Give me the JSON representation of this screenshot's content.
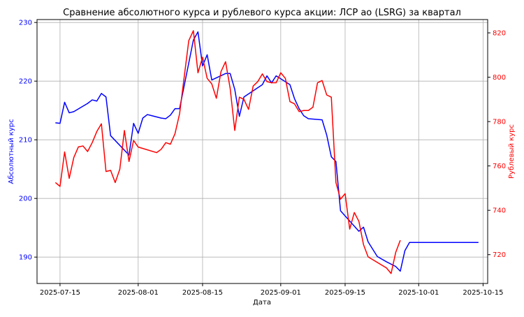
{
  "chart_data": {
    "type": "line",
    "title": "Сравнение абсолютного курса и рублевого курса акции: ЛСР ао (LSRG) за квартал",
    "xlabel": "Дата",
    "ylabel_left": "Абсолютный курс",
    "ylabel_right": "Рублевый курс",
    "grid": true,
    "colors": {
      "left": "#0000ff",
      "right": "#ff0000",
      "grid": "#b0b0b0",
      "axis": "#000000"
    },
    "x_ticks": [
      "2025-07-15",
      "2025-08-01",
      "2025-08-15",
      "2025-09-01",
      "2025-09-15",
      "2025-10-01",
      "2025-10-15"
    ],
    "x_range": [
      "2025-07-10",
      "2025-10-16"
    ],
    "yleft_ticks": [
      190,
      200,
      210,
      220,
      230
    ],
    "yleft_range": [
      185.5,
      230.5
    ],
    "yright_ticks": [
      720,
      740,
      760,
      780,
      800,
      820
    ],
    "yright_range": [
      707,
      826
    ],
    "series": [
      {
        "axis": "left",
        "color": "#0000ff",
        "points": [
          [
            "2025-07-14",
            212.9
          ],
          [
            "2025-07-15",
            212.8
          ],
          [
            "2025-07-16",
            216.4
          ],
          [
            "2025-07-17",
            214.6
          ],
          [
            "2025-07-18",
            214.8
          ],
          [
            "2025-07-21",
            216.2
          ],
          [
            "2025-07-22",
            216.8
          ],
          [
            "2025-07-23",
            216.6
          ],
          [
            "2025-07-24",
            217.9
          ],
          [
            "2025-07-25",
            217.3
          ],
          [
            "2025-07-26",
            210.7
          ],
          [
            "2025-07-30",
            207.4
          ],
          [
            "2025-07-31",
            212.8
          ],
          [
            "2025-08-01",
            211.1
          ],
          [
            "2025-08-02",
            213.7
          ],
          [
            "2025-08-03",
            214.3
          ],
          [
            "2025-08-04",
            214.1
          ],
          [
            "2025-08-06",
            213.7
          ],
          [
            "2025-08-07",
            213.6
          ],
          [
            "2025-08-08",
            214.2
          ],
          [
            "2025-08-09",
            215.3
          ],
          [
            "2025-08-10",
            215.3
          ],
          [
            "2025-08-13",
            227.0
          ],
          [
            "2025-08-14",
            228.4
          ],
          [
            "2025-08-15",
            222.6
          ],
          [
            "2025-08-16",
            224.5
          ],
          [
            "2025-08-17",
            220.2
          ],
          [
            "2025-08-20",
            221.3
          ],
          [
            "2025-08-21",
            221.3
          ],
          [
            "2025-08-22",
            218.6
          ],
          [
            "2025-08-23",
            214.0
          ],
          [
            "2025-08-24",
            217.3
          ],
          [
            "2025-08-28",
            219.4
          ],
          [
            "2025-08-29",
            220.9
          ],
          [
            "2025-08-30",
            219.7
          ],
          [
            "2025-08-31",
            220.9
          ],
          [
            "2025-09-02",
            219.9
          ],
          [
            "2025-09-03",
            219.4
          ],
          [
            "2025-09-04",
            217.0
          ],
          [
            "2025-09-05",
            215.3
          ],
          [
            "2025-09-06",
            214.1
          ],
          [
            "2025-09-07",
            213.6
          ],
          [
            "2025-09-10",
            213.4
          ],
          [
            "2025-09-11",
            210.8
          ],
          [
            "2025-09-12",
            207.1
          ],
          [
            "2025-09-13",
            206.3
          ],
          [
            "2025-09-14",
            197.9
          ],
          [
            "2025-09-18",
            194.4
          ],
          [
            "2025-09-19",
            195.1
          ],
          [
            "2025-09-20",
            192.6
          ],
          [
            "2025-09-22",
            190.1
          ],
          [
            "2025-09-24",
            189.2
          ],
          [
            "2025-09-26",
            188.4
          ],
          [
            "2025-09-27",
            187.6
          ],
          [
            "2025-09-28",
            191.1
          ],
          [
            "2025-09-29",
            192.5
          ],
          [
            "2025-10-14",
            192.5
          ]
        ]
      },
      {
        "axis": "right",
        "color": "#ff0000",
        "points": [
          [
            "2025-07-14",
            752.5
          ],
          [
            "2025-07-15",
            750.8
          ],
          [
            "2025-07-16",
            766.3
          ],
          [
            "2025-07-17",
            754.4
          ],
          [
            "2025-07-18",
            763.8
          ],
          [
            "2025-07-19",
            768.6
          ],
          [
            "2025-07-20",
            769.0
          ],
          [
            "2025-07-21",
            766.5
          ],
          [
            "2025-07-22",
            770.5
          ],
          [
            "2025-07-23",
            775.5
          ],
          [
            "2025-07-24",
            779.0
          ],
          [
            "2025-07-25",
            757.5
          ],
          [
            "2025-07-26",
            758.0
          ],
          [
            "2025-07-27",
            752.5
          ],
          [
            "2025-07-28",
            758.5
          ],
          [
            "2025-07-29",
            776.0
          ],
          [
            "2025-07-30",
            762.0
          ],
          [
            "2025-07-31",
            771.5
          ],
          [
            "2025-08-01",
            768.5
          ],
          [
            "2025-08-05",
            766.0
          ],
          [
            "2025-08-06",
            767.5
          ],
          [
            "2025-08-07",
            770.5
          ],
          [
            "2025-08-08",
            769.8
          ],
          [
            "2025-08-09",
            774.5
          ],
          [
            "2025-08-10",
            783.5
          ],
          [
            "2025-08-12",
            816.5
          ],
          [
            "2025-08-13",
            821.0
          ],
          [
            "2025-08-14",
            802.0
          ],
          [
            "2025-08-15",
            809.0
          ],
          [
            "2025-08-16",
            799.5
          ],
          [
            "2025-08-17",
            797.0
          ],
          [
            "2025-08-18",
            790.5
          ],
          [
            "2025-08-19",
            802.5
          ],
          [
            "2025-08-20",
            807.0
          ],
          [
            "2025-08-21",
            795.0
          ],
          [
            "2025-08-22",
            776.0
          ],
          [
            "2025-08-23",
            791.0
          ],
          [
            "2025-08-24",
            790.0
          ],
          [
            "2025-08-25",
            785.5
          ],
          [
            "2025-08-26",
            796.0
          ],
          [
            "2025-08-27",
            798.0
          ],
          [
            "2025-08-28",
            801.5
          ],
          [
            "2025-08-29",
            798.0
          ],
          [
            "2025-08-30",
            797.5
          ],
          [
            "2025-08-31",
            797.5
          ],
          [
            "2025-09-01",
            802.0
          ],
          [
            "2025-09-02",
            799.5
          ],
          [
            "2025-09-03",
            789.0
          ],
          [
            "2025-09-04",
            788.0
          ],
          [
            "2025-09-05",
            784.5
          ],
          [
            "2025-09-06",
            785.0
          ],
          [
            "2025-09-07",
            785.0
          ],
          [
            "2025-09-08",
            786.5
          ],
          [
            "2025-09-09",
            797.5
          ],
          [
            "2025-09-10",
            798.5
          ],
          [
            "2025-09-11",
            792.0
          ],
          [
            "2025-09-12",
            791.0
          ],
          [
            "2025-09-13",
            752.5
          ],
          [
            "2025-09-14",
            745.0
          ],
          [
            "2025-09-15",
            747.5
          ],
          [
            "2025-09-16",
            731.5
          ],
          [
            "2025-09-17",
            739.0
          ],
          [
            "2025-09-18",
            735.0
          ],
          [
            "2025-09-19",
            724.5
          ],
          [
            "2025-09-20",
            719.0
          ],
          [
            "2025-09-24",
            714.0
          ],
          [
            "2025-09-25",
            711.5
          ],
          [
            "2025-09-26",
            721.0
          ],
          [
            "2025-09-27",
            726.5
          ]
        ]
      }
    ]
  }
}
